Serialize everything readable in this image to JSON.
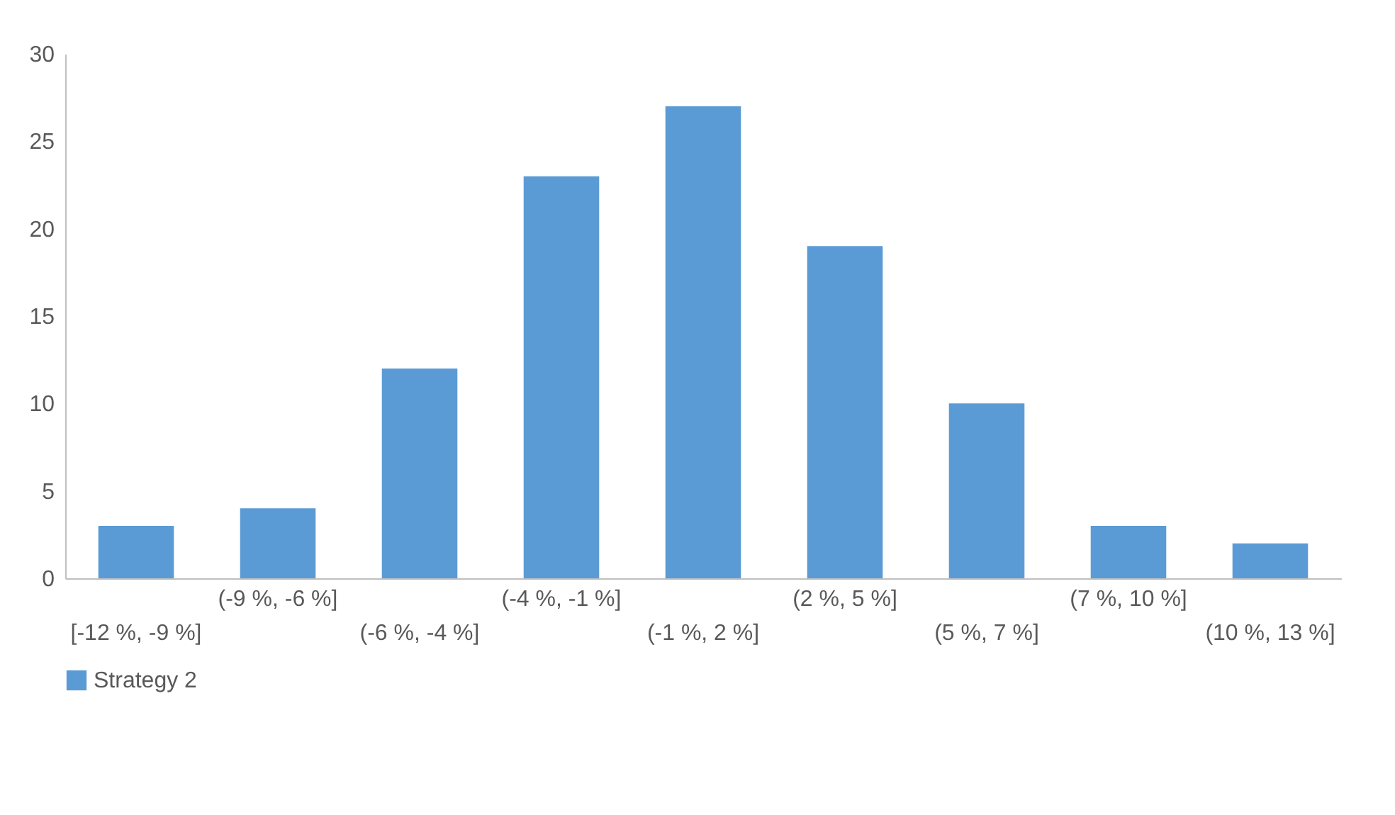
{
  "chart_data": {
    "type": "bar",
    "categories": [
      "[-12 %, -9 %]",
      "(-9 %, -6 %]",
      "(-6 %, -4 %]",
      "(-4 %, -1 %]",
      "(-1 %, 2 %]",
      "(2 %, 5 %]",
      "(5 %, 7 %]",
      "(7 %, 10 %]",
      "(10 %, 13 %]"
    ],
    "series": [
      {
        "name": "Strategy 2",
        "color": "#5b9bd5",
        "values": [
          3,
          4,
          12,
          23,
          27,
          19,
          10,
          3,
          2
        ]
      }
    ],
    "ylim": [
      0,
      30
    ],
    "yticks": [
      0,
      5,
      10,
      15,
      20,
      25,
      30
    ],
    "grid": false,
    "legend": "bottom"
  }
}
